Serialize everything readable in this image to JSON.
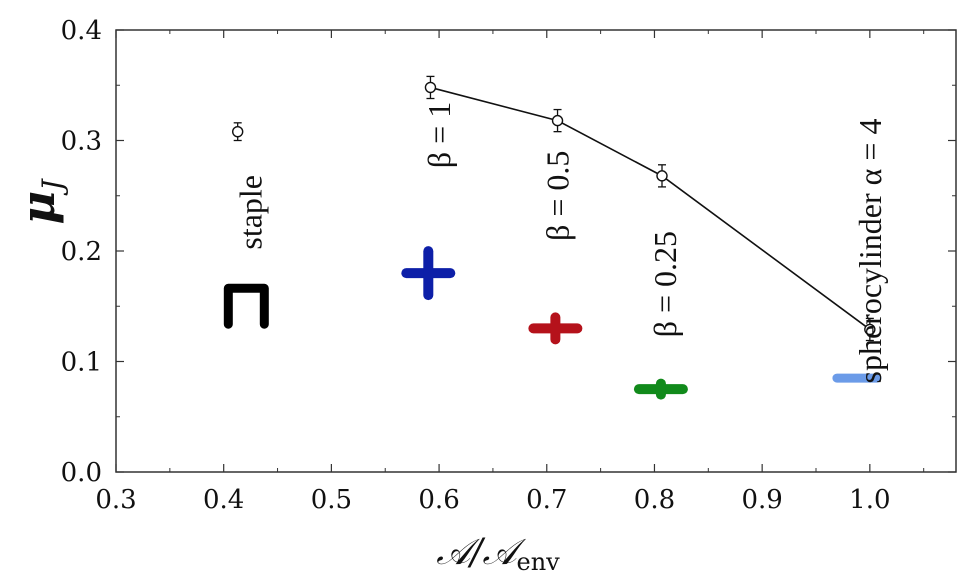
{
  "chart_data": {
    "type": "scatter",
    "xlabel": "𝒜/𝒜",
    "xlabel_sub": "env",
    "ylabel": "μ",
    "ylabel_sub": "J",
    "xlim": [
      0.3,
      1.08
    ],
    "ylim": [
      0.0,
      0.4
    ],
    "x_ticks": [
      "0.3",
      "0.4",
      "0.5",
      "0.6",
      "0.7",
      "0.8",
      "0.9",
      "1.0"
    ],
    "y_ticks": [
      "0.0",
      "0.1",
      "0.2",
      "0.3",
      "0.4"
    ],
    "grid": false,
    "series": [
      {
        "points": [
          {
            "x": 0.413,
            "y": 0.308,
            "err": 0.008
          },
          {
            "x": 0.592,
            "y": 0.348,
            "err": 0.01
          },
          {
            "x": 0.71,
            "y": 0.318,
            "err": 0.01
          },
          {
            "x": 0.807,
            "y": 0.268,
            "err": 0.01
          },
          {
            "x": 1.0,
            "y": 0.129,
            "err": 0.01
          }
        ],
        "line_connects": [
          1,
          2,
          3,
          4
        ]
      }
    ],
    "annotations": [
      {
        "text": "staple",
        "x": 0.425,
        "y": 0.235,
        "rotate": -90
      },
      {
        "text": "β = 1",
        "x": 0.6,
        "y": 0.305,
        "rotate": -90
      },
      {
        "text": "β = 0.5",
        "x": 0.71,
        "y": 0.25,
        "rotate": -90
      },
      {
        "text": "β = 0.25",
        "x": 0.81,
        "y": 0.17,
        "rotate": -90
      },
      {
        "text": "spherocylinder α = 4",
        "x": 1.0,
        "y": 0.2,
        "rotate": -90
      }
    ],
    "shape_markers": [
      {
        "shape": "staple-icon",
        "x": 0.421,
        "y": 0.15,
        "color": "#000000"
      },
      {
        "shape": "cross-icon",
        "x": 0.59,
        "y": 0.18,
        "color": "#0d1fa8",
        "arm_ratio": 1.0
      },
      {
        "shape": "cross-icon",
        "x": 0.708,
        "y": 0.13,
        "color": "#b5121b",
        "arm_ratio": 0.5
      },
      {
        "shape": "cross-icon",
        "x": 0.806,
        "y": 0.075,
        "color": "#118a1b",
        "arm_ratio": 0.25
      },
      {
        "shape": "rod-icon",
        "x": 0.988,
        "y": 0.085,
        "color": "#6b9be8"
      }
    ]
  }
}
